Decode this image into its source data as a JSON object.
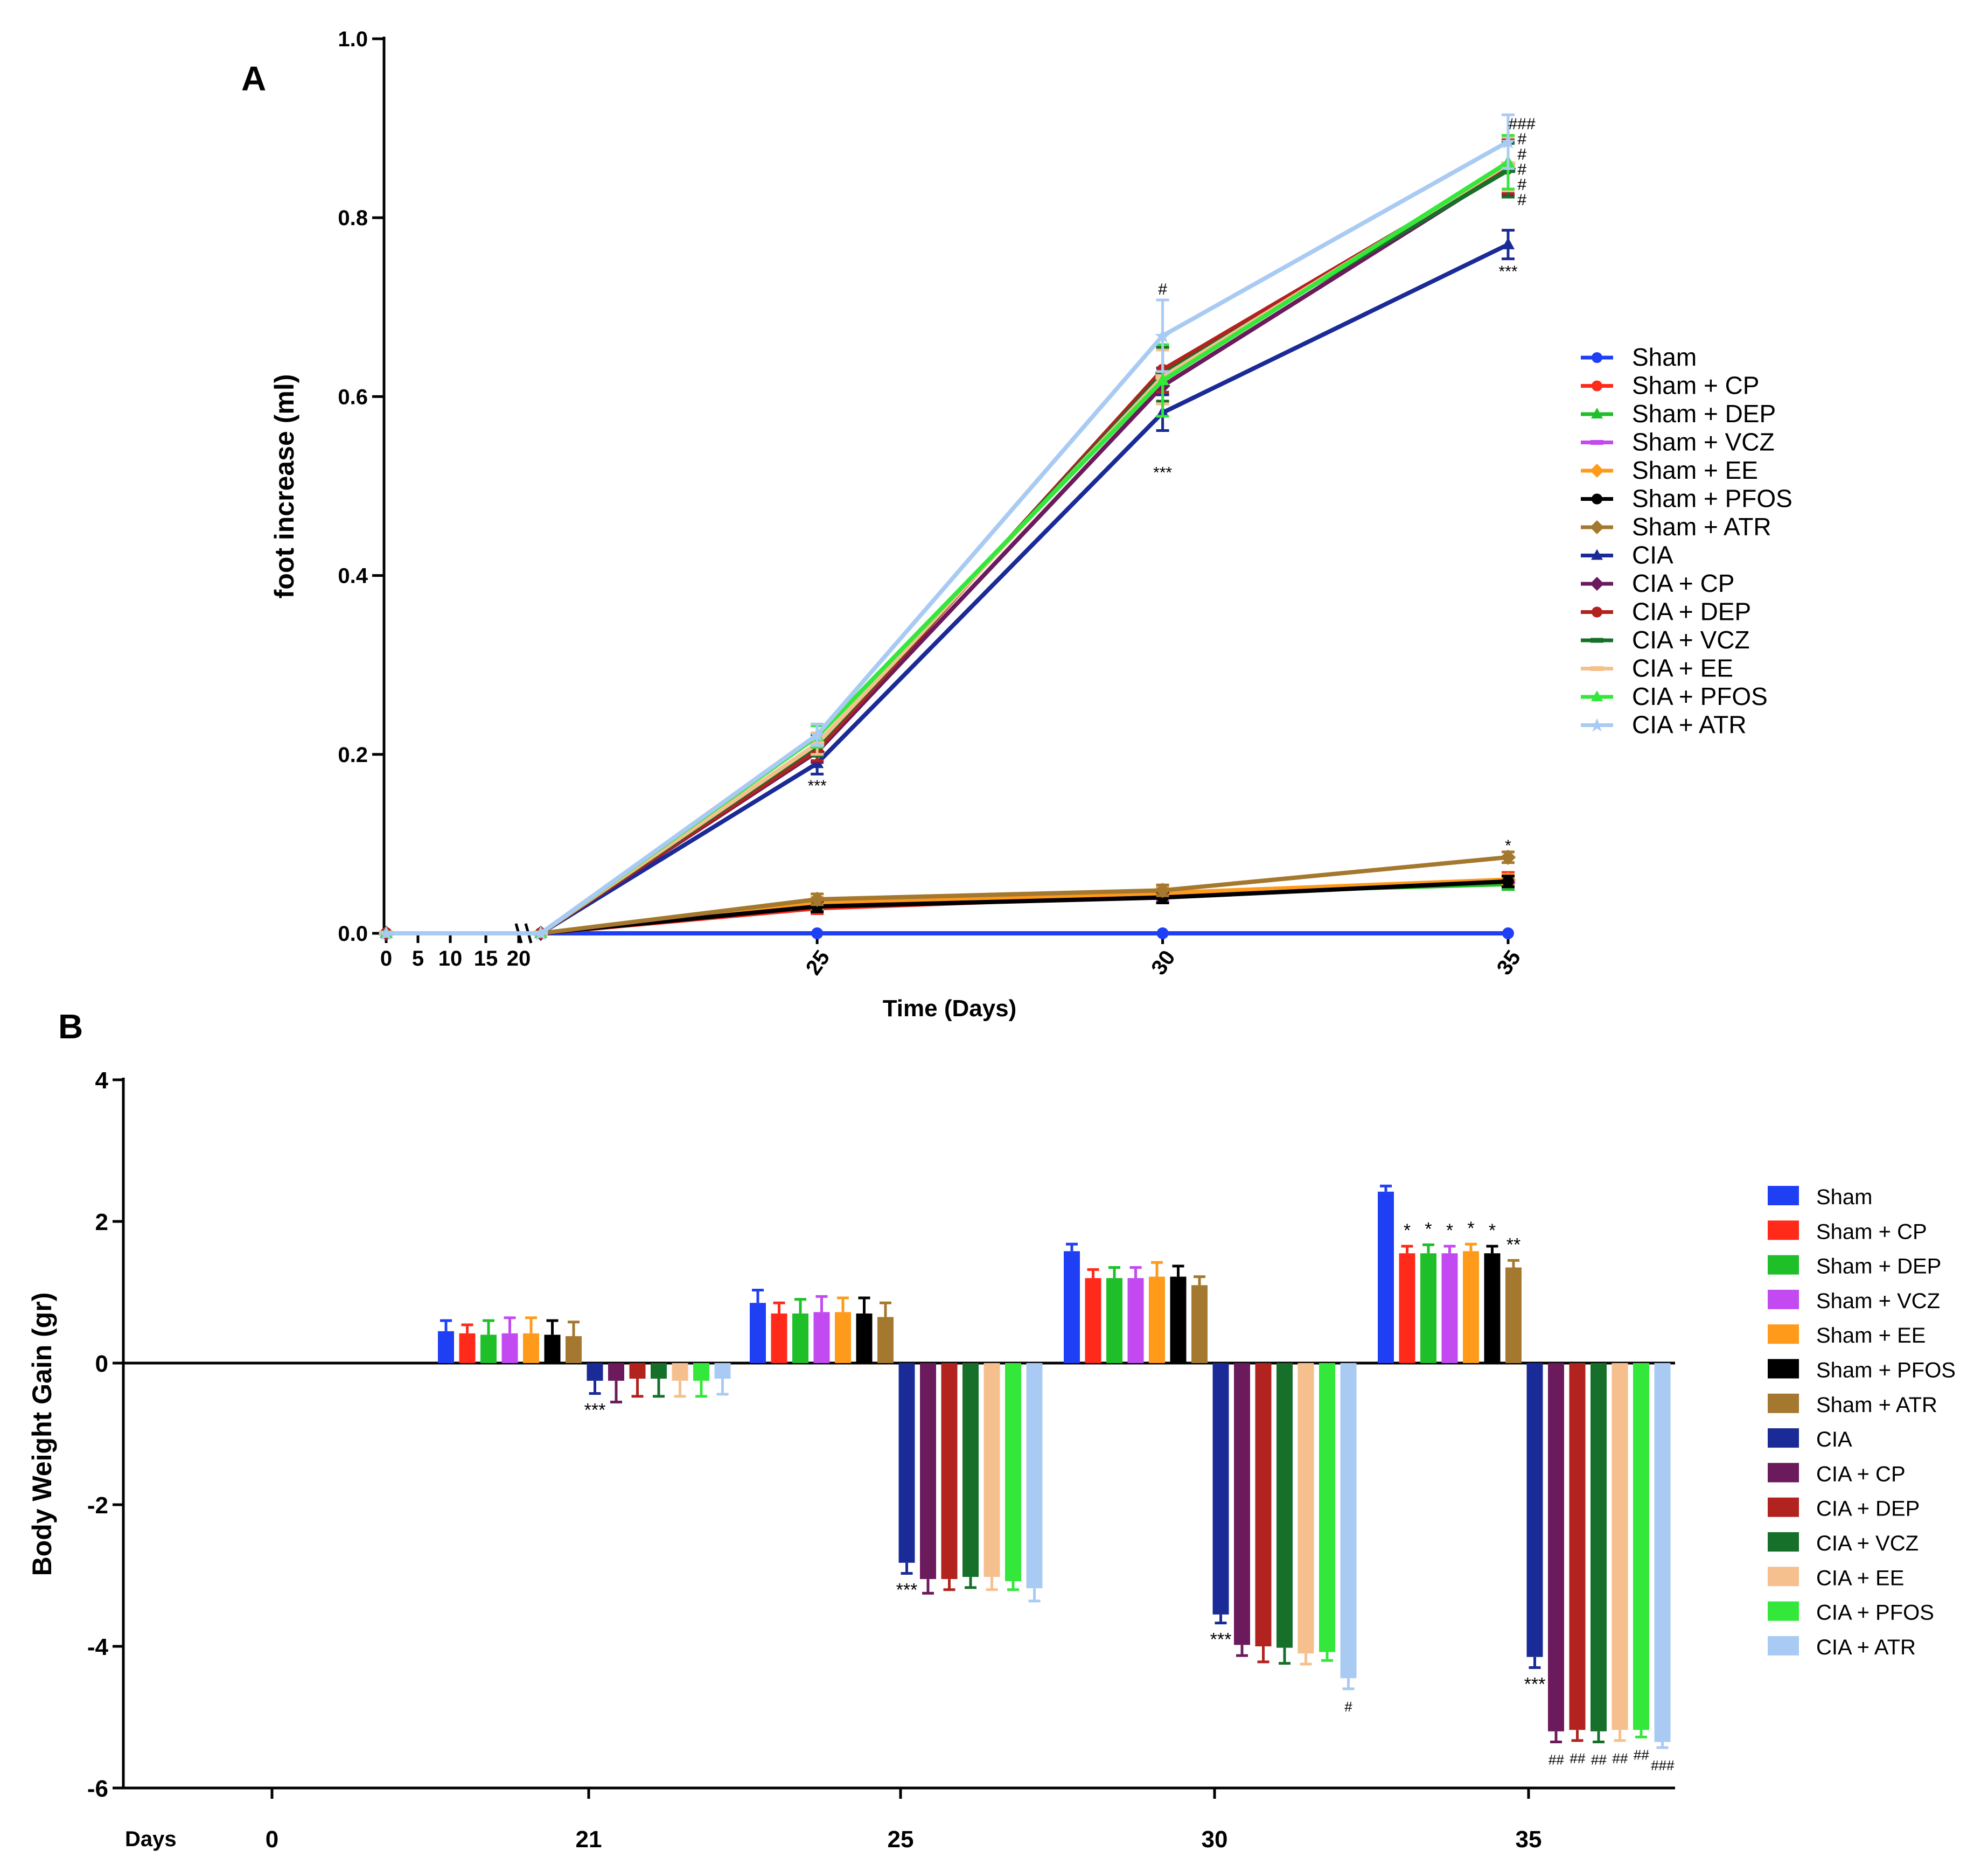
{
  "panels": {
    "a": {
      "label": "A"
    },
    "b": {
      "label": "B"
    }
  },
  "chart_data": [
    {
      "type": "line",
      "panel": "A",
      "title": "",
      "xlabel": "Time (Days)",
      "ylabel": "foot increase (ml)",
      "ylim": [
        0,
        1.0
      ],
      "yticks": [
        "0.0",
        "0.2",
        "0.4",
        "0.6",
        "0.8",
        "1.0"
      ],
      "xtick_labels_left": [
        "0",
        "5",
        "10",
        "15",
        "20"
      ],
      "xtick_labels_main": [
        "25",
        "30",
        "35"
      ],
      "x": [
        0,
        21,
        25,
        30,
        35
      ],
      "series": [
        {
          "name": "Sham",
          "color": "#1f3ff5",
          "marker": "circle",
          "values": [
            0,
            0,
            0,
            0,
            0
          ],
          "err": [
            0,
            0,
            0,
            0,
            0
          ]
        },
        {
          "name": "Sham + CP",
          "color": "#ff2a1a",
          "marker": "circle",
          "values": [
            0,
            0,
            0.028,
            0.042,
            0.06
          ],
          "err": [
            0,
            0,
            0.006,
            0.006,
            0.008
          ]
        },
        {
          "name": "Sham + DEP",
          "color": "#1fbf2a",
          "marker": "triangle",
          "values": [
            0,
            0,
            0.032,
            0.044,
            0.055
          ],
          "err": [
            0,
            0,
            0.006,
            0.006,
            0.006
          ]
        },
        {
          "name": "Sham + VCZ",
          "color": "#c24af0",
          "marker": "dash",
          "values": [
            0,
            0,
            0.03,
            0.043,
            0.058
          ],
          "err": [
            0,
            0,
            0.006,
            0.006,
            0.006
          ]
        },
        {
          "name": "Sham + EE",
          "color": "#ff9a1a",
          "marker": "diamond",
          "values": [
            0,
            0,
            0.034,
            0.045,
            0.06
          ],
          "err": [
            0,
            0,
            0.006,
            0.006,
            0.006
          ]
        },
        {
          "name": "Sham + PFOS",
          "color": "#000000",
          "marker": "circle",
          "values": [
            0,
            0,
            0.03,
            0.04,
            0.058
          ],
          "err": [
            0,
            0,
            0.006,
            0.006,
            0.006
          ]
        },
        {
          "name": "Sham + ATR",
          "color": "#a5782f",
          "marker": "diamond",
          "values": [
            0,
            0,
            0.038,
            0.048,
            0.085
          ],
          "err": [
            0,
            0,
            0.006,
            0.006,
            0.006
          ]
        },
        {
          "name": "CIA",
          "color": "#1a2a96",
          "marker": "triangle",
          "values": [
            0,
            0,
            0.19,
            0.582,
            0.77
          ],
          "err": [
            0,
            0,
            0.012,
            0.02,
            0.016
          ]
        },
        {
          "name": "CIA + CP",
          "color": "#6b1a5c",
          "marker": "diamond",
          "values": [
            0,
            0,
            0.203,
            0.612,
            0.855
          ],
          "err": [
            0,
            0,
            0.012,
            0.02,
            0.03
          ]
        },
        {
          "name": "CIA + DEP",
          "color": "#b2221e",
          "marker": "circle",
          "values": [
            0,
            0,
            0.205,
            0.63,
            0.857
          ],
          "err": [
            0,
            0,
            0.012,
            0.025,
            0.03
          ]
        },
        {
          "name": "CIA + VCZ",
          "color": "#16702a",
          "marker": "dash",
          "values": [
            0,
            0,
            0.21,
            0.625,
            0.853
          ],
          "err": [
            0,
            0,
            0.012,
            0.03,
            0.03
          ]
        },
        {
          "name": "CIA + EE",
          "color": "#f5c08e",
          "marker": "dash",
          "values": [
            0,
            0,
            0.212,
            0.622,
            0.86
          ],
          "err": [
            0,
            0,
            0.012,
            0.03,
            0.03
          ]
        },
        {
          "name": "CIA + PFOS",
          "color": "#33e83a",
          "marker": "triangle",
          "values": [
            0,
            0,
            0.22,
            0.618,
            0.862
          ],
          "err": [
            0,
            0,
            0.012,
            0.04,
            0.03
          ]
        },
        {
          "name": "CIA + ATR",
          "color": "#a9cbf3",
          "marker": "star",
          "values": [
            0,
            0,
            0.222,
            0.668,
            0.885
          ],
          "err": [
            0,
            0,
            0.012,
            0.04,
            0.03
          ]
        }
      ],
      "annotations": [
        {
          "text": "***",
          "x": 25,
          "y": 0.165
        },
        {
          "text": "***",
          "x": 30,
          "y": 0.515
        },
        {
          "text": "#",
          "x": 30,
          "y": 0.72
        },
        {
          "text": "***",
          "x": 35,
          "y": 0.74
        },
        {
          "text": "###",
          "x": 35.2,
          "y": 0.905
        },
        {
          "text": "#",
          "x": 35.2,
          "y": 0.888
        },
        {
          "text": "#",
          "x": 35.2,
          "y": 0.871
        },
        {
          "text": "#",
          "x": 35.2,
          "y": 0.854
        },
        {
          "text": "#",
          "x": 35.2,
          "y": 0.837
        },
        {
          "text": "#",
          "x": 35.2,
          "y": 0.82
        },
        {
          "text": "*",
          "x": 35,
          "y": 0.098
        }
      ]
    },
    {
      "type": "bar",
      "panel": "B",
      "title": "",
      "xlabel": "Days",
      "ylabel": "Body Weight Gain (gr)",
      "ylim": [
        -6,
        4
      ],
      "yticks": [
        "-6",
        "-4",
        "-2",
        "0",
        "2",
        "4"
      ],
      "categories": [
        "0",
        "21",
        "25",
        "30",
        "35"
      ],
      "series": [
        {
          "name": "Sham",
          "color": "#1f3ff5",
          "values": [
            0,
            0.45,
            0.85,
            1.58,
            2.42
          ],
          "err": [
            0,
            0.15,
            0.18,
            0.1,
            0.08
          ]
        },
        {
          "name": "Sham + CP",
          "color": "#ff2a1a",
          "values": [
            0,
            0.42,
            0.7,
            1.2,
            1.55
          ],
          "err": [
            0,
            0.12,
            0.15,
            0.12,
            0.1
          ]
        },
        {
          "name": "Sham + DEP",
          "color": "#1fbf2a",
          "values": [
            0,
            0.4,
            0.7,
            1.2,
            1.55
          ],
          "err": [
            0,
            0.2,
            0.2,
            0.15,
            0.12
          ]
        },
        {
          "name": "Sham + VCZ",
          "color": "#c24af0",
          "values": [
            0,
            0.42,
            0.72,
            1.2,
            1.55
          ],
          "err": [
            0,
            0.22,
            0.22,
            0.15,
            0.1
          ]
        },
        {
          "name": "Sham + EE",
          "color": "#ff9a1a",
          "values": [
            0,
            0.42,
            0.72,
            1.22,
            1.58
          ],
          "err": [
            0,
            0.22,
            0.2,
            0.2,
            0.1
          ]
        },
        {
          "name": "Sham + PFOS",
          "color": "#000000",
          "values": [
            0,
            0.4,
            0.7,
            1.22,
            1.55
          ],
          "err": [
            0,
            0.2,
            0.22,
            0.15,
            0.1
          ]
        },
        {
          "name": "Sham + ATR",
          "color": "#a5782f",
          "values": [
            0,
            0.38,
            0.65,
            1.1,
            1.35
          ],
          "err": [
            0,
            0.2,
            0.2,
            0.12,
            0.1
          ]
        },
        {
          "name": "CIA",
          "color": "#1a2a96",
          "values": [
            0,
            -0.25,
            -2.82,
            -3.55,
            -4.15
          ],
          "err": [
            0,
            0.18,
            0.15,
            0.12,
            0.15
          ]
        },
        {
          "name": "CIA + CP",
          "color": "#6b1a5c",
          "values": [
            0,
            -0.25,
            -3.05,
            -3.98,
            -5.2
          ],
          "err": [
            0,
            0.3,
            0.2,
            0.15,
            0.15
          ]
        },
        {
          "name": "CIA + DEP",
          "color": "#b2221e",
          "values": [
            0,
            -0.22,
            -3.05,
            -4.0,
            -5.18
          ],
          "err": [
            0,
            0.25,
            0.15,
            0.22,
            0.15
          ]
        },
        {
          "name": "CIA + VCZ",
          "color": "#16702a",
          "values": [
            0,
            -0.22,
            -3.02,
            -4.02,
            -5.2
          ],
          "err": [
            0,
            0.25,
            0.15,
            0.22,
            0.15
          ]
        },
        {
          "name": "CIA + EE",
          "color": "#f5c08e",
          "values": [
            0,
            -0.25,
            -3.02,
            -4.1,
            -5.18
          ],
          "err": [
            0,
            0.22,
            0.18,
            0.15,
            0.15
          ]
        },
        {
          "name": "CIA + PFOS",
          "color": "#33e83a",
          "values": [
            0,
            -0.25,
            -3.08,
            -4.08,
            -5.18
          ],
          "err": [
            0,
            0.22,
            0.12,
            0.12,
            0.1
          ]
        },
        {
          "name": "CIA + ATR",
          "color": "#a9cbf3",
          "values": [
            0,
            -0.22,
            -3.18,
            -4.45,
            -5.35
          ],
          "err": [
            0,
            0.22,
            0.18,
            0.15,
            0.08
          ]
        }
      ],
      "annotations": [
        {
          "category": 1,
          "bar": 7,
          "text": "***",
          "pos": "below"
        },
        {
          "category": 2,
          "bar": 7,
          "text": "***",
          "pos": "below"
        },
        {
          "category": 3,
          "bar": 7,
          "text": "***",
          "pos": "below"
        },
        {
          "category": 3,
          "bar": 13,
          "text": "#",
          "pos": "below"
        },
        {
          "category": 4,
          "bar": 7,
          "text": "***",
          "pos": "below"
        },
        {
          "category": 4,
          "bar": 1,
          "text": "*",
          "pos": "above"
        },
        {
          "category": 4,
          "bar": 2,
          "text": "*",
          "pos": "above"
        },
        {
          "category": 4,
          "bar": 3,
          "text": "*",
          "pos": "above"
        },
        {
          "category": 4,
          "bar": 4,
          "text": "*",
          "pos": "above"
        },
        {
          "category": 4,
          "bar": 5,
          "text": "*",
          "pos": "above"
        },
        {
          "category": 4,
          "bar": 6,
          "text": "**",
          "pos": "above"
        },
        {
          "category": 4,
          "bar": 8,
          "text": "##",
          "pos": "below"
        },
        {
          "category": 4,
          "bar": 9,
          "text": "##",
          "pos": "below"
        },
        {
          "category": 4,
          "bar": 10,
          "text": "##",
          "pos": "below"
        },
        {
          "category": 4,
          "bar": 11,
          "text": "##",
          "pos": "below"
        },
        {
          "category": 4,
          "bar": 12,
          "text": "##",
          "pos": "below"
        },
        {
          "category": 4,
          "bar": 13,
          "text": "###",
          "pos": "below"
        }
      ]
    }
  ]
}
